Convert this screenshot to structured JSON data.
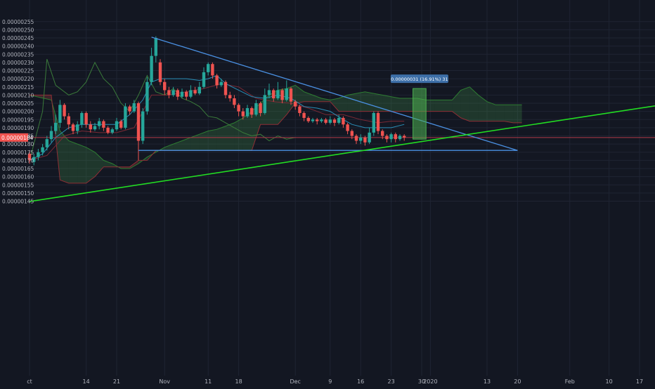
{
  "chart_data": {
    "type": "candlestick",
    "title": "",
    "xlabel": "",
    "ylabel": "",
    "ylim": [
      1.44e-06,
      2.56e-06
    ],
    "grid": true,
    "y_ticks": [
      "0.00000145",
      "0.00000150",
      "0.00000155",
      "0.00000160",
      "0.00000165",
      "0.00000170",
      "0.00000175",
      "0.00000180",
      "0.00000185",
      "0.00000190",
      "0.00000195",
      "0.00000200",
      "0.00000205",
      "0.00000210",
      "0.00000215",
      "0.00000220",
      "0.00000225",
      "0.00000230",
      "0.00000235",
      "0.00000240",
      "0.00000245",
      "0.00000250",
      "0.00000255"
    ],
    "x_ticks": [
      {
        "label": "ct",
        "day": 0
      },
      {
        "label": "14",
        "day": 13
      },
      {
        "label": "21",
        "day": 20
      },
      {
        "label": "Nov",
        "day": 31
      },
      {
        "label": "11",
        "day": 41
      },
      {
        "label": "18",
        "day": 48
      },
      {
        "label": "Dec",
        "day": 61
      },
      {
        "label": "9",
        "day": 69
      },
      {
        "label": "16",
        "day": 76
      },
      {
        "label": "23",
        "day": 83
      },
      {
        "label": "30",
        "day": 90
      },
      {
        "label": "2020",
        "day": 92
      },
      {
        "label": "13",
        "day": 105
      },
      {
        "label": "20",
        "day": 112
      },
      {
        "label": "Feb",
        "day": 124
      },
      {
        "label": "10",
        "day": 133
      },
      {
        "label": "17",
        "day": 140
      }
    ],
    "last_price": "0.00000184",
    "last_price_value": 1.84e-06,
    "candles": [
      [
        0,
        1.74,
        1.7,
        1.76,
        1.68
      ],
      [
        1,
        1.69,
        1.72,
        1.74,
        1.67
      ],
      [
        2,
        1.72,
        1.75,
        1.77,
        1.7
      ],
      [
        3,
        1.75,
        1.78,
        1.8,
        1.73
      ],
      [
        4,
        1.78,
        1.83,
        1.85,
        1.76
      ],
      [
        5,
        1.83,
        1.88,
        1.91,
        1.81
      ],
      [
        6,
        1.88,
        1.93,
        1.98,
        1.86
      ],
      [
        7,
        1.93,
        2.04,
        2.07,
        1.9
      ],
      [
        8,
        2.04,
        1.97,
        2.05,
        1.95
      ],
      [
        9,
        1.97,
        1.92,
        1.99,
        1.89
      ],
      [
        10,
        1.92,
        1.88,
        1.93,
        1.86
      ],
      [
        11,
        1.88,
        1.92,
        1.94,
        1.86
      ],
      [
        12,
        1.92,
        1.99,
        2.0,
        1.9
      ],
      [
        13,
        1.99,
        1.92,
        2.0,
        1.9
      ],
      [
        14,
        1.92,
        1.89,
        1.94,
        1.87
      ],
      [
        15,
        1.89,
        1.91,
        1.93,
        1.88
      ],
      [
        16,
        1.91,
        1.94,
        1.96,
        1.89
      ],
      [
        17,
        1.94,
        1.9,
        1.95,
        1.88
      ],
      [
        18,
        1.9,
        1.87,
        1.91,
        1.86
      ],
      [
        19,
        1.87,
        1.89,
        1.9,
        1.86
      ],
      [
        20,
        1.89,
        1.94,
        1.96,
        1.88
      ],
      [
        21,
        1.94,
        1.9,
        1.95,
        1.89
      ],
      [
        22,
        1.9,
        2.03,
        2.05,
        1.89
      ],
      [
        23,
        2.03,
        2.0,
        2.04,
        1.98
      ],
      [
        24,
        2.0,
        2.05,
        2.07,
        1.99
      ],
      [
        25,
        2.05,
        1.82,
        2.06,
        1.7
      ],
      [
        26,
        1.82,
        2.0,
        2.02,
        1.8
      ],
      [
        27,
        2.0,
        2.18,
        2.21,
        1.98
      ],
      [
        28,
        2.18,
        2.34,
        2.39,
        2.16
      ],
      [
        29,
        2.34,
        2.45,
        2.46,
        2.3
      ],
      [
        30,
        2.3,
        2.18,
        2.32,
        2.16
      ],
      [
        31,
        2.18,
        2.13,
        2.2,
        2.1
      ],
      [
        32,
        2.13,
        2.1,
        2.15,
        2.08
      ],
      [
        33,
        2.1,
        2.13,
        2.15,
        2.09
      ],
      [
        34,
        2.13,
        2.09,
        2.14,
        2.07
      ],
      [
        35,
        2.09,
        2.12,
        2.14,
        2.08
      ],
      [
        36,
        2.12,
        2.09,
        2.13,
        2.07
      ],
      [
        37,
        2.09,
        2.13,
        2.16,
        2.08
      ],
      [
        38,
        2.13,
        2.11,
        2.15,
        2.1
      ],
      [
        39,
        2.11,
        2.15,
        2.18,
        2.1
      ],
      [
        40,
        2.15,
        2.24,
        2.27,
        2.14
      ],
      [
        41,
        2.24,
        2.29,
        2.3,
        2.22
      ],
      [
        42,
        2.29,
        2.22,
        2.3,
        2.2
      ],
      [
        43,
        2.22,
        2.16,
        2.23,
        2.14
      ],
      [
        44,
        2.16,
        2.18,
        2.2,
        2.15
      ],
      [
        45,
        2.18,
        2.1,
        2.19,
        2.08
      ],
      [
        46,
        2.1,
        2.08,
        2.12,
        2.06
      ],
      [
        47,
        2.08,
        2.04,
        2.1,
        2.02
      ],
      [
        48,
        2.04,
        2.0,
        2.05,
        1.97
      ],
      [
        49,
        2.0,
        1.97,
        2.02,
        1.95
      ],
      [
        50,
        1.97,
        2.02,
        2.04,
        1.96
      ],
      [
        51,
        2.02,
        1.98,
        2.03,
        1.96
      ],
      [
        52,
        1.98,
        2.05,
        2.07,
        1.97
      ],
      [
        53,
        2.05,
        1.99,
        2.06,
        1.97
      ],
      [
        54,
        1.99,
        2.1,
        2.14,
        1.98
      ],
      [
        55,
        2.1,
        2.13,
        2.17,
        2.08
      ],
      [
        56,
        2.13,
        2.08,
        2.14,
        2.06
      ],
      [
        57,
        2.08,
        2.13,
        2.18,
        2.07
      ],
      [
        58,
        2.13,
        2.07,
        2.14,
        2.05
      ],
      [
        59,
        2.07,
        2.14,
        2.19,
        2.06
      ],
      [
        60,
        2.14,
        2.06,
        2.15,
        2.04
      ],
      [
        61,
        2.06,
        2.03,
        2.07,
        2.01
      ],
      [
        62,
        2.03,
        1.99,
        2.04,
        1.97
      ],
      [
        63,
        1.99,
        1.96,
        2.0,
        1.94
      ],
      [
        64,
        1.96,
        1.94,
        1.97,
        1.93
      ],
      [
        65,
        1.94,
        1.95,
        1.96,
        1.93
      ],
      [
        66,
        1.95,
        1.94,
        1.96,
        1.92
      ],
      [
        67,
        1.94,
        1.95,
        1.96,
        1.93
      ],
      [
        68,
        1.95,
        1.93,
        1.96,
        1.92
      ],
      [
        69,
        1.93,
        1.95,
        1.97,
        1.92
      ],
      [
        70,
        1.95,
        1.93,
        1.96,
        1.91
      ],
      [
        71,
        1.93,
        1.96,
        1.98,
        1.92
      ],
      [
        72,
        1.96,
        1.92,
        1.97,
        1.9
      ],
      [
        73,
        1.92,
        1.88,
        1.93,
        1.86
      ],
      [
        74,
        1.88,
        1.85,
        1.89,
        1.83
      ],
      [
        75,
        1.85,
        1.82,
        1.86,
        1.8
      ],
      [
        76,
        1.82,
        1.84,
        1.86,
        1.8
      ],
      [
        77,
        1.84,
        1.81,
        1.85,
        1.79
      ],
      [
        78,
        1.81,
        1.87,
        1.9,
        1.8
      ],
      [
        79,
        1.87,
        1.99,
        2.0,
        1.85
      ],
      [
        80,
        1.99,
        1.88,
        2.0,
        1.86
      ],
      [
        81,
        1.88,
        1.85,
        1.89,
        1.83
      ],
      [
        82,
        1.85,
        1.83,
        1.86,
        1.81
      ],
      [
        83,
        1.83,
        1.86,
        1.87,
        1.81
      ],
      [
        84,
        1.86,
        1.83,
        1.87,
        1.81
      ],
      [
        85,
        1.83,
        1.85,
        1.86,
        1.82
      ],
      [
        86,
        1.85,
        1.84,
        1.86,
        1.82
      ]
    ],
    "tenkan": [
      [
        0,
        1.7
      ],
      [
        3,
        1.74
      ],
      [
        6,
        1.84
      ],
      [
        9,
        1.9
      ],
      [
        12,
        1.92
      ],
      [
        16,
        1.92
      ],
      [
        20,
        1.92
      ],
      [
        23,
        1.98
      ],
      [
        26,
        2.07
      ],
      [
        28,
        2.18
      ],
      [
        30,
        2.2
      ],
      [
        33,
        2.2
      ],
      [
        36,
        2.2
      ],
      [
        39,
        2.19
      ],
      [
        41,
        2.2
      ],
      [
        43,
        2.22
      ],
      [
        45,
        2.17
      ],
      [
        48,
        2.13
      ],
      [
        51,
        2.09
      ],
      [
        54,
        2.08
      ],
      [
        57,
        2.1
      ],
      [
        60,
        2.08
      ],
      [
        63,
        2.03
      ],
      [
        66,
        2.02
      ],
      [
        69,
        2.0
      ],
      [
        72,
        1.95
      ],
      [
        74,
        1.92
      ],
      [
        77,
        1.9
      ],
      [
        80,
        1.9
      ],
      [
        83,
        1.9
      ],
      [
        86,
        1.92
      ]
    ],
    "kijun": [
      [
        0,
        1.7
      ],
      [
        4,
        1.73
      ],
      [
        8,
        1.85
      ],
      [
        12,
        1.88
      ],
      [
        16,
        1.87
      ],
      [
        20,
        1.87
      ],
      [
        24,
        1.9
      ],
      [
        28,
        2.1
      ],
      [
        32,
        2.1
      ],
      [
        36,
        2.12
      ],
      [
        40,
        2.14
      ],
      [
        44,
        2.17
      ],
      [
        48,
        2.15
      ],
      [
        52,
        2.08
      ],
      [
        56,
        2.06
      ],
      [
        60,
        2.05
      ],
      [
        64,
        2.02
      ],
      [
        68,
        1.98
      ],
      [
        72,
        1.98
      ],
      [
        76,
        1.95
      ],
      [
        80,
        1.93
      ],
      [
        83,
        1.94
      ],
      [
        86,
        1.94
      ]
    ],
    "chikou": [
      [
        0,
        1.7
      ],
      [
        3,
        2.0
      ],
      [
        4,
        2.32
      ],
      [
        6,
        2.16
      ],
      [
        9,
        2.1
      ],
      [
        11,
        2.12
      ],
      [
        13,
        2.18
      ],
      [
        15,
        2.3
      ],
      [
        17,
        2.2
      ],
      [
        19,
        2.15
      ],
      [
        21,
        2.05
      ],
      [
        23,
        2.0
      ],
      [
        25,
        2.1
      ],
      [
        27,
        2.22
      ],
      [
        29,
        2.12
      ],
      [
        31,
        2.1
      ],
      [
        33,
        2.14
      ],
      [
        35,
        2.08
      ],
      [
        37,
        2.06
      ],
      [
        39,
        2.03
      ],
      [
        41,
        1.97
      ],
      [
        43,
        1.96
      ],
      [
        45,
        1.93
      ],
      [
        47,
        1.9
      ],
      [
        49,
        1.87
      ],
      [
        51,
        1.85
      ],
      [
        53,
        1.86
      ],
      [
        55,
        1.82
      ],
      [
        57,
        1.85
      ],
      [
        59,
        1.83
      ],
      [
        61,
        1.84
      ]
    ],
    "span_a": [
      [
        0,
        2.1
      ],
      [
        5,
        2.07
      ],
      [
        7,
        1.88
      ],
      [
        9,
        1.82
      ],
      [
        11,
        1.8
      ],
      [
        13,
        1.78
      ],
      [
        15,
        1.75
      ],
      [
        17,
        1.7
      ],
      [
        19,
        1.68
      ],
      [
        21,
        1.65
      ],
      [
        23,
        1.65
      ],
      [
        25,
        1.68
      ],
      [
        27,
        1.72
      ],
      [
        29,
        1.75
      ],
      [
        31,
        1.78
      ],
      [
        33,
        1.8
      ],
      [
        35,
        1.82
      ],
      [
        37,
        1.84
      ],
      [
        39,
        1.86
      ],
      [
        41,
        1.88
      ],
      [
        43,
        1.89
      ],
      [
        45,
        1.91
      ],
      [
        47,
        1.93
      ],
      [
        49,
        1.96
      ],
      [
        51,
        2.0
      ],
      [
        53,
        2.05
      ],
      [
        55,
        2.1
      ],
      [
        57,
        2.13
      ],
      [
        59,
        2.14
      ],
      [
        61,
        2.16
      ],
      [
        63,
        2.12
      ],
      [
        65,
        2.1
      ],
      [
        67,
        2.08
      ],
      [
        69,
        2.07
      ],
      [
        71,
        2.08
      ],
      [
        73,
        2.1
      ],
      [
        75,
        2.11
      ],
      [
        77,
        2.12
      ],
      [
        79,
        2.11
      ],
      [
        81,
        2.1
      ],
      [
        83,
        2.09
      ],
      [
        85,
        2.08
      ],
      [
        87,
        2.08
      ],
      [
        89,
        2.08
      ],
      [
        91,
        2.07
      ],
      [
        93,
        2.07
      ],
      [
        95,
        2.07
      ],
      [
        97,
        2.07
      ],
      [
        99,
        2.13
      ],
      [
        101,
        2.15
      ],
      [
        103,
        2.1
      ],
      [
        105,
        2.06
      ],
      [
        107,
        2.04
      ],
      [
        109,
        2.04
      ],
      [
        111,
        2.04
      ],
      [
        113,
        2.04
      ]
    ],
    "span_b": [
      [
        0,
        2.1
      ],
      [
        5,
        2.1
      ],
      [
        7,
        1.58
      ],
      [
        9,
        1.56
      ],
      [
        11,
        1.56
      ],
      [
        13,
        1.56
      ],
      [
        15,
        1.6
      ],
      [
        17,
        1.66
      ],
      [
        19,
        1.66
      ],
      [
        21,
        1.66
      ],
      [
        23,
        1.66
      ],
      [
        25,
        1.7
      ],
      [
        27,
        1.7
      ],
      [
        29,
        1.76
      ],
      [
        31,
        1.76
      ],
      [
        33,
        1.76
      ],
      [
        35,
        1.76
      ],
      [
        37,
        1.76
      ],
      [
        39,
        1.76
      ],
      [
        41,
        1.76
      ],
      [
        43,
        1.76
      ],
      [
        45,
        1.76
      ],
      [
        47,
        1.76
      ],
      [
        49,
        1.76
      ],
      [
        51,
        1.76
      ],
      [
        53,
        1.92
      ],
      [
        55,
        1.92
      ],
      [
        57,
        1.92
      ],
      [
        59,
        1.98
      ],
      [
        61,
        2.05
      ],
      [
        63,
        2.06
      ],
      [
        65,
        2.06
      ],
      [
        67,
        2.06
      ],
      [
        69,
        2.06
      ],
      [
        71,
        2.0
      ],
      [
        73,
        2.0
      ],
      [
        75,
        2.0
      ],
      [
        77,
        2.0
      ],
      [
        79,
        2.0
      ],
      [
        81,
        2.0
      ],
      [
        83,
        2.0
      ],
      [
        85,
        2.0
      ],
      [
        87,
        2.0
      ],
      [
        89,
        2.0
      ],
      [
        91,
        2.0
      ],
      [
        93,
        2.0
      ],
      [
        95,
        2.0
      ],
      [
        97,
        2.0
      ],
      [
        99,
        1.96
      ],
      [
        101,
        1.94
      ],
      [
        103,
        1.94
      ],
      [
        105,
        1.94
      ],
      [
        107,
        1.94
      ],
      [
        109,
        1.94
      ],
      [
        111,
        1.93
      ],
      [
        113,
        1.93
      ]
    ],
    "triangle_upper": [
      [
        28,
        2.455
      ],
      [
        112,
        1.761
      ]
    ],
    "triangle_lower": [
      [
        25,
        1.761
      ],
      [
        112,
        1.761
      ]
    ],
    "support_line": [
      [
        0,
        1.448
      ],
      [
        148,
        2.052
      ]
    ],
    "target_box": {
      "day_start": 88,
      "day_end": 91,
      "y_bottom": 1.83,
      "y_top": 2.14
    },
    "target_label": "0.00000031 (16.91%) 31"
  }
}
